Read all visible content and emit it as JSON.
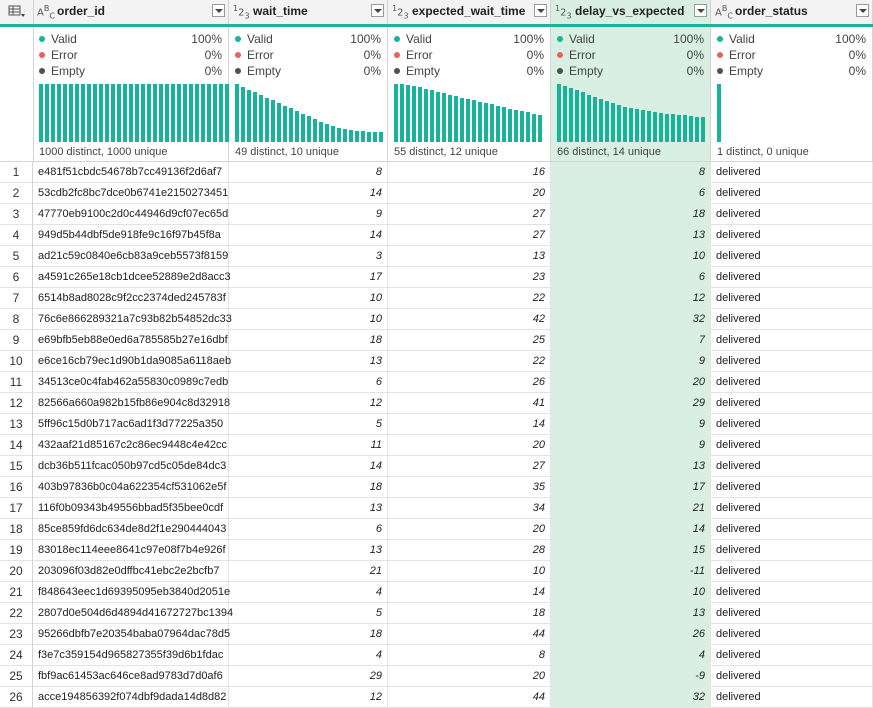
{
  "corner_icon": "table-menu-icon",
  "columns": [
    {
      "key": "order_id",
      "name": "order_id",
      "type": "text",
      "type_label": "ABC",
      "distinct": "1000 distinct, 1000 unique",
      "bars": [
        58,
        58,
        58,
        58,
        58,
        58,
        58,
        58,
        58,
        58,
        58,
        58,
        58,
        58,
        58,
        58,
        58,
        58,
        58,
        58,
        58,
        58,
        58,
        58,
        58,
        58,
        58,
        58,
        58,
        58,
        58,
        58
      ]
    },
    {
      "key": "wait_time",
      "name": "wait_time",
      "type": "number",
      "type_label": "123",
      "distinct": "49 distinct, 10 unique",
      "bars": [
        58,
        55,
        52,
        50,
        47,
        44,
        42,
        39,
        36,
        34,
        31,
        28,
        26,
        23,
        20,
        18,
        16,
        14,
        13,
        12,
        11,
        11,
        10,
        10,
        10
      ]
    },
    {
      "key": "expected_wait_time",
      "name": "expected_wait_time",
      "type": "number",
      "type_label": "123",
      "distinct": "55 distinct, 12 unique",
      "bars": [
        58,
        58,
        57,
        56,
        55,
        53,
        52,
        50,
        49,
        47,
        46,
        44,
        43,
        42,
        40,
        39,
        38,
        36,
        35,
        33,
        32,
        31,
        30,
        28,
        27
      ]
    },
    {
      "key": "delay_vs_expected",
      "name": "delay_vs_expected",
      "type": "number",
      "type_label": "123",
      "distinct": "66 distinct, 14 unique",
      "bars": [
        58,
        56,
        54,
        52,
        50,
        47,
        45,
        43,
        41,
        39,
        37,
        35,
        34,
        33,
        32,
        31,
        30,
        29,
        28,
        28,
        27,
        27,
        26,
        25,
        25
      ]
    },
    {
      "key": "order_status",
      "name": "order_status",
      "type": "text",
      "type_label": "ABC",
      "distinct": "1 distinct, 0 unique",
      "bars": [
        58
      ]
    }
  ],
  "quality": {
    "valid_label": "Valid",
    "error_label": "Error",
    "empty_label": "Empty",
    "valid_pct": "100%",
    "error_pct": "0%",
    "empty_pct": "0%"
  },
  "colors": {
    "valid": "#17b39b",
    "error": "#e8645a",
    "empty": "#505050",
    "selected_bg": "#d9efe4"
  },
  "rows": [
    {
      "n": "1",
      "order_id": "e481f51cbdc54678b7cc49136f2d6af7",
      "wait_time": "8",
      "expected_wait_time": "16",
      "delay_vs_expected": "8",
      "order_status": "delivered"
    },
    {
      "n": "2",
      "order_id": "53cdb2fc8bc7dce0b6741e2150273451",
      "wait_time": "14",
      "expected_wait_time": "20",
      "delay_vs_expected": "6",
      "order_status": "delivered"
    },
    {
      "n": "3",
      "order_id": "47770eb9100c2d0c44946d9cf07ec65d",
      "wait_time": "9",
      "expected_wait_time": "27",
      "delay_vs_expected": "18",
      "order_status": "delivered"
    },
    {
      "n": "4",
      "order_id": "949d5b44dbf5de918fe9c16f97b45f8a",
      "wait_time": "14",
      "expected_wait_time": "27",
      "delay_vs_expected": "13",
      "order_status": "delivered"
    },
    {
      "n": "5",
      "order_id": "ad21c59c0840e6cb83a9ceb5573f8159",
      "wait_time": "3",
      "expected_wait_time": "13",
      "delay_vs_expected": "10",
      "order_status": "delivered"
    },
    {
      "n": "6",
      "order_id": "a4591c265e18cb1dcee52889e2d8acc3",
      "wait_time": "17",
      "expected_wait_time": "23",
      "delay_vs_expected": "6",
      "order_status": "delivered"
    },
    {
      "n": "7",
      "order_id": "6514b8ad8028c9f2cc2374ded245783f",
      "wait_time": "10",
      "expected_wait_time": "22",
      "delay_vs_expected": "12",
      "order_status": "delivered"
    },
    {
      "n": "8",
      "order_id": "76c6e866289321a7c93b82b54852dc33",
      "wait_time": "10",
      "expected_wait_time": "42",
      "delay_vs_expected": "32",
      "order_status": "delivered"
    },
    {
      "n": "9",
      "order_id": "e69bfb5eb88e0ed6a785585b27e16dbf",
      "wait_time": "18",
      "expected_wait_time": "25",
      "delay_vs_expected": "7",
      "order_status": "delivered"
    },
    {
      "n": "10",
      "order_id": "e6ce16cb79ec1d90b1da9085a6118aeb",
      "wait_time": "13",
      "expected_wait_time": "22",
      "delay_vs_expected": "9",
      "order_status": "delivered"
    },
    {
      "n": "11",
      "order_id": "34513ce0c4fab462a55830c0989c7edb",
      "wait_time": "6",
      "expected_wait_time": "26",
      "delay_vs_expected": "20",
      "order_status": "delivered"
    },
    {
      "n": "12",
      "order_id": "82566a660a982b15fb86e904c8d32918",
      "wait_time": "12",
      "expected_wait_time": "41",
      "delay_vs_expected": "29",
      "order_status": "delivered"
    },
    {
      "n": "13",
      "order_id": "5ff96c15d0b717ac6ad1f3d77225a350",
      "wait_time": "5",
      "expected_wait_time": "14",
      "delay_vs_expected": "9",
      "order_status": "delivered"
    },
    {
      "n": "14",
      "order_id": "432aaf21d85167c2c86ec9448c4e42cc",
      "wait_time": "11",
      "expected_wait_time": "20",
      "delay_vs_expected": "9",
      "order_status": "delivered"
    },
    {
      "n": "15",
      "order_id": "dcb36b511fcac050b97cd5c05de84dc3",
      "wait_time": "14",
      "expected_wait_time": "27",
      "delay_vs_expected": "13",
      "order_status": "delivered"
    },
    {
      "n": "16",
      "order_id": "403b97836b0c04a622354cf531062e5f",
      "wait_time": "18",
      "expected_wait_time": "35",
      "delay_vs_expected": "17",
      "order_status": "delivered"
    },
    {
      "n": "17",
      "order_id": "116f0b09343b49556bbad5f35bee0cdf",
      "wait_time": "13",
      "expected_wait_time": "34",
      "delay_vs_expected": "21",
      "order_status": "delivered"
    },
    {
      "n": "18",
      "order_id": "85ce859fd6dc634de8d2f1e290444043",
      "wait_time": "6",
      "expected_wait_time": "20",
      "delay_vs_expected": "14",
      "order_status": "delivered"
    },
    {
      "n": "19",
      "order_id": "83018ec114eee8641c97e08f7b4e926f",
      "wait_time": "13",
      "expected_wait_time": "28",
      "delay_vs_expected": "15",
      "order_status": "delivered"
    },
    {
      "n": "20",
      "order_id": "203096f03d82e0dffbc41ebc2e2bcfb7",
      "wait_time": "21",
      "expected_wait_time": "10",
      "delay_vs_expected": "-11",
      "order_status": "delivered"
    },
    {
      "n": "21",
      "order_id": "f848643eec1d69395095eb3840d2051e",
      "wait_time": "4",
      "expected_wait_time": "14",
      "delay_vs_expected": "10",
      "order_status": "delivered"
    },
    {
      "n": "22",
      "order_id": "2807d0e504d6d4894d41672727bc1394",
      "wait_time": "5",
      "expected_wait_time": "18",
      "delay_vs_expected": "13",
      "order_status": "delivered"
    },
    {
      "n": "23",
      "order_id": "95266dbfb7e20354baba07964dac78d5",
      "wait_time": "18",
      "expected_wait_time": "44",
      "delay_vs_expected": "26",
      "order_status": "delivered"
    },
    {
      "n": "24",
      "order_id": "f3e7c359154d965827355f39d6b1fdac",
      "wait_time": "4",
      "expected_wait_time": "8",
      "delay_vs_expected": "4",
      "order_status": "delivered"
    },
    {
      "n": "25",
      "order_id": "fbf9ac61453ac646ce8ad9783d7d0af6",
      "wait_time": "29",
      "expected_wait_time": "20",
      "delay_vs_expected": "-9",
      "order_status": "delivered"
    },
    {
      "n": "26",
      "order_id": "acce194856392f074dbf9dada14d8d82",
      "wait_time": "12",
      "expected_wait_time": "44",
      "delay_vs_expected": "32",
      "order_status": "delivered"
    }
  ]
}
